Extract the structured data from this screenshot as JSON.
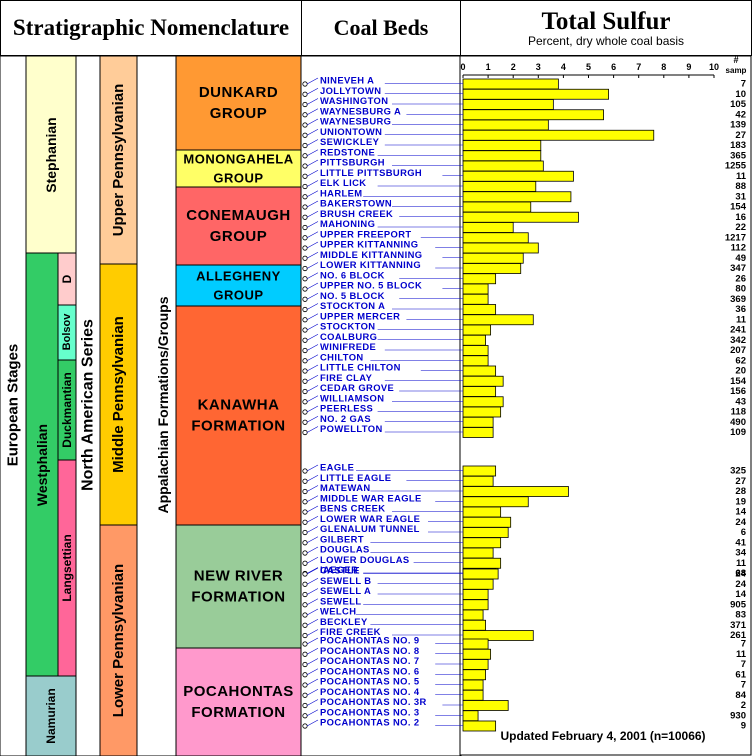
{
  "headers": {
    "strat": "Stratigraphic Nomenclature",
    "coal": "Coal Beds",
    "sulfur_title": "Total Sulfur",
    "sulfur_sub": "Percent, dry whole coal basis"
  },
  "columns": {
    "european": "European Stages",
    "north_american": "North American Series",
    "appalachian": "Appalachian Formations/Groups"
  },
  "european_stages": [
    {
      "label": "Stephanian",
      "color": "#ffffcc"
    },
    {
      "label": "Westphalian",
      "color": "#33cc66"
    },
    {
      "label": "D",
      "color": "#ffcccc"
    },
    {
      "label": "Bolsov",
      "color": "#66ffcc"
    },
    {
      "label": "Duckmantian",
      "color": "#33cc66"
    },
    {
      "label": "Langsettian",
      "color": "#ff6699"
    },
    {
      "label": "Namurian",
      "color": "#99cccc"
    }
  ],
  "series": [
    {
      "label": "Upper Pennsylvanian",
      "color": "#ffcc99"
    },
    {
      "label": "Middle Pennsylvanian",
      "color": "#ffcc00"
    },
    {
      "label": "Lower Pennsylvanian",
      "color": "#ff9966"
    }
  ],
  "formations": [
    {
      "lines": [
        "DUNKARD",
        "GROUP"
      ],
      "color": "#ff9933"
    },
    {
      "lines": [
        "MONONGAHELA",
        "GROUP"
      ],
      "color": "#ffff66"
    },
    {
      "lines": [
        "CONEMAUGH",
        "GROUP"
      ],
      "color": "#ff6666"
    },
    {
      "lines": [
        "ALLEGHENY",
        "GROUP"
      ],
      "color": "#00ccff"
    },
    {
      "lines": [
        "KANAWHA",
        "FORMATION"
      ],
      "color": "#ff6633"
    },
    {
      "lines": [
        "NEW RIVER",
        "FORMATION"
      ],
      "color": "#99cc99"
    },
    {
      "lines": [
        "POCAHONTAS",
        "FORMATION"
      ],
      "color": "#ff99cc"
    }
  ],
  "chart_data": {
    "type": "bar",
    "orientation": "horizontal",
    "title": "Total Sulfur",
    "subtitle": "Percent, dry whole coal basis",
    "xlim": [
      0,
      10
    ],
    "xticks": [
      "0",
      "1",
      "2",
      "3",
      "4",
      "5",
      "6",
      "7",
      "8",
      "9",
      "10"
    ],
    "samples_label": "#",
    "samples_sublabel": "samp",
    "bar_color": "#ffff00",
    "label_color": "#0000cc",
    "beds": [
      {
        "name": "NINEVEH A",
        "value": 3.8,
        "n": "7"
      },
      {
        "name": "JOLLYTOWN",
        "value": 5.8,
        "n": "10"
      },
      {
        "name": "WASHINGTON",
        "value": 3.6,
        "n": "105"
      },
      {
        "name": "WAYNESBURG A",
        "value": 5.6,
        "n": "42"
      },
      {
        "name": "WAYNESBURG",
        "value": 3.4,
        "n": "139"
      },
      {
        "name": "UNIONTOWN",
        "value": 7.6,
        "n": "27"
      },
      {
        "name": "SEWICKLEY",
        "value": 3.1,
        "n": "183"
      },
      {
        "name": "REDSTONE",
        "value": 3.1,
        "n": "365"
      },
      {
        "name": "PITTSBURGH",
        "value": 3.2,
        "n": "1255"
      },
      {
        "name": "LITTLE PITTSBURGH",
        "value": 4.4,
        "n": "11"
      },
      {
        "name": "ELK LICK",
        "value": 2.9,
        "n": "88"
      },
      {
        "name": "HARLEM",
        "value": 4.3,
        "n": "31"
      },
      {
        "name": "BAKERSTOWN",
        "value": 2.7,
        "n": "154"
      },
      {
        "name": "BRUSH CREEK",
        "value": 4.6,
        "n": "16"
      },
      {
        "name": "MAHONING",
        "value": 2.0,
        "n": "22"
      },
      {
        "name": "UPPER FREEPORT",
        "value": 2.6,
        "n": "1217"
      },
      {
        "name": "UPPER KITTANNING",
        "value": 3.0,
        "n": "112"
      },
      {
        "name": "MIDDLE KITTANNING",
        "value": 2.4,
        "n": "49"
      },
      {
        "name": "LOWER KITTANNING",
        "value": 2.3,
        "n": "347"
      },
      {
        "name": "NO. 6 BLOCK",
        "value": 1.3,
        "n": "26"
      },
      {
        "name": "UPPER NO. 5 BLOCK",
        "value": 1.0,
        "n": "80"
      },
      {
        "name": "NO. 5 BLOCK",
        "value": 1.0,
        "n": "369"
      },
      {
        "name": "STOCKTON A",
        "value": 1.3,
        "n": "36"
      },
      {
        "name": "UPPER MERCER",
        "value": 2.8,
        "n": "11"
      },
      {
        "name": "STOCKTON",
        "value": 1.1,
        "n": "241"
      },
      {
        "name": "COALBURG",
        "value": 0.9,
        "n": "342"
      },
      {
        "name": "WINIFREDE",
        "value": 1.0,
        "n": "207"
      },
      {
        "name": "CHILTON",
        "value": 1.0,
        "n": "62"
      },
      {
        "name": "LITTLE CHILTON",
        "value": 1.3,
        "n": "20"
      },
      {
        "name": "FIRE CLAY",
        "value": 1.6,
        "n": "154"
      },
      {
        "name": "CEDAR GROVE",
        "value": 1.3,
        "n": "156"
      },
      {
        "name": "WILLIAMSON",
        "value": 1.6,
        "n": "43"
      },
      {
        "name": "PEERLESS",
        "value": 1.5,
        "n": "118"
      },
      {
        "name": "NO. 2 GAS",
        "value": 1.2,
        "n": "490"
      },
      {
        "name": "POWELLTON",
        "value": 1.2,
        "n": "109"
      },
      {
        "name": "EAGLE",
        "value": 1.3,
        "n": "325"
      },
      {
        "name": "LITTLE EAGLE",
        "value": 1.2,
        "n": "27"
      },
      {
        "name": "MATEWAN",
        "value": 4.2,
        "n": "28"
      },
      {
        "name": "MIDDLE WAR EAGLE",
        "value": 2.6,
        "n": "19"
      },
      {
        "name": "BENS CREEK",
        "value": 1.5,
        "n": "14"
      },
      {
        "name": "LOWER WAR EAGLE",
        "value": 1.9,
        "n": "24"
      },
      {
        "name": "GLENALUM TUNNEL",
        "value": 1.8,
        "n": "6"
      },
      {
        "name": "GILBERT",
        "value": 1.5,
        "n": "41"
      },
      {
        "name": "DOUGLAS",
        "value": 1.2,
        "n": "34"
      },
      {
        "name": "LOWER DOUGLAS",
        "value": 1.5,
        "n": "11"
      },
      {
        "name": "IAEGER",
        "value": 1.3,
        "n": "68"
      },
      {
        "name": "CASTLE",
        "value": 1.4,
        "n": "24"
      },
      {
        "name": "SEWELL B",
        "value": 1.2,
        "n": "24"
      },
      {
        "name": "SEWELL A",
        "value": 1.0,
        "n": "14"
      },
      {
        "name": "SEWELL",
        "value": 1.0,
        "n": "905"
      },
      {
        "name": "WELCH",
        "value": 0.8,
        "n": "83"
      },
      {
        "name": "BECKLEY",
        "value": 0.9,
        "n": "371"
      },
      {
        "name": "FIRE CREEK",
        "value": 2.8,
        "n": "261"
      },
      {
        "name": "POCAHONTAS NO. 9",
        "value": 1.0,
        "n": "7"
      },
      {
        "name": "POCAHONTAS NO. 8",
        "value": 1.1,
        "n": "11"
      },
      {
        "name": "POCAHONTAS NO. 7",
        "value": 1.0,
        "n": "7"
      },
      {
        "name": "POCAHONTAS NO. 6",
        "value": 0.9,
        "n": "61"
      },
      {
        "name": "POCAHONTAS NO. 5",
        "value": 0.8,
        "n": "7"
      },
      {
        "name": "POCAHONTAS NO. 4",
        "value": 0.8,
        "n": "84"
      },
      {
        "name": "POCAHONTAS NO. 3R",
        "value": 1.8,
        "n": "2"
      },
      {
        "name": "POCAHONTAS NO. 3",
        "value": 0.6,
        "n": "930"
      },
      {
        "name": "POCAHONTAS NO. 2",
        "value": 1.3,
        "n": "9"
      }
    ],
    "footer": "Updated February 4, 2001 (n=10066)"
  }
}
